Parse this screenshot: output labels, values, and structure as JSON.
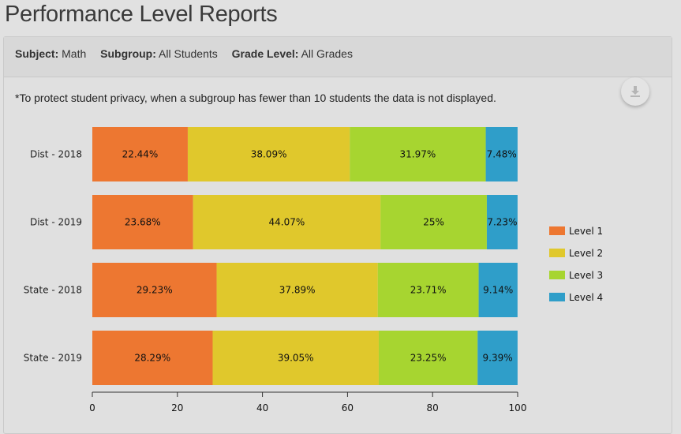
{
  "page_title": "Performance Level Reports",
  "filters": [
    {
      "label": "Subject:",
      "value": "Math"
    },
    {
      "label": "Subgroup:",
      "value": "All Students"
    },
    {
      "label": "Grade Level:",
      "value": "All Grades"
    }
  ],
  "privacy_note": "*To protect student privacy, when a subgroup has fewer than 10 students the data is not displayed.",
  "download_icon": "download-icon",
  "chart_data": {
    "type": "bar",
    "orientation": "horizontal",
    "stacked": true,
    "categories": [
      "Dist - 2018",
      "Dist - 2019",
      "State - 2018",
      "State - 2019"
    ],
    "series": [
      {
        "name": "Level 1",
        "color": "#ed7731",
        "values": [
          22.44,
          23.68,
          29.23,
          28.29
        ],
        "labels": [
          "22.44%",
          "23.68%",
          "29.23%",
          "28.29%"
        ]
      },
      {
        "name": "Level 2",
        "color": "#e0c82c",
        "values": [
          38.09,
          44.07,
          37.89,
          39.05
        ],
        "labels": [
          "38.09%",
          "44.07%",
          "37.89%",
          "39.05%"
        ]
      },
      {
        "name": "Level 3",
        "color": "#a7d530",
        "values": [
          31.97,
          25,
          23.71,
          23.25
        ],
        "labels": [
          "31.97%",
          "25%",
          "23.71%",
          "23.25%"
        ]
      },
      {
        "name": "Level 4",
        "color": "#2f9ec9",
        "values": [
          7.48,
          7.23,
          9.14,
          9.39
        ],
        "labels": [
          "7.48%",
          "7.23%",
          "9.14%",
          "9.39%"
        ]
      }
    ],
    "xlim": [
      0,
      100
    ],
    "xticks": [
      "0",
      "20",
      "40",
      "60",
      "80",
      "100"
    ],
    "legend_position": "right",
    "grid": false
  }
}
